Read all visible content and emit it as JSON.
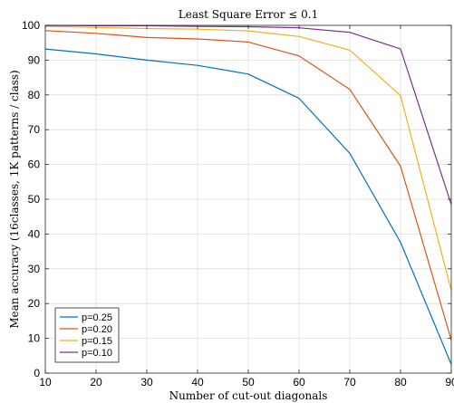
{
  "chart_data": {
    "type": "line",
    "title": "Least Square Error ≤ 0.1",
    "xlabel": "Number of cut-out diagonals",
    "ylabel": "Mean accuracy (16classes, 1K patterns / class)",
    "x": [
      10,
      20,
      30,
      40,
      50,
      60,
      70,
      80,
      90
    ],
    "xlim": [
      10,
      90
    ],
    "ylim": [
      0,
      100
    ],
    "xticks": [
      10,
      20,
      30,
      40,
      50,
      60,
      70,
      80,
      90
    ],
    "yticks": [
      0,
      10,
      20,
      30,
      40,
      50,
      60,
      70,
      80,
      90,
      100
    ],
    "grid": true,
    "legend_position": "bottom-left",
    "series": [
      {
        "name": "p=0.25",
        "color": "#0072BD",
        "values": [
          93.2,
          91.8,
          90.0,
          88.5,
          86.0,
          79.0,
          63.2,
          37.6,
          2.5
        ]
      },
      {
        "name": "p=0.20",
        "color": "#D95319",
        "values": [
          98.5,
          97.7,
          96.5,
          96.1,
          95.2,
          91.2,
          81.6,
          59.5,
          9.5
        ]
      },
      {
        "name": "p=0.15",
        "color": "#EDB120",
        "values": [
          99.7,
          99.4,
          99.1,
          98.9,
          98.4,
          96.8,
          92.9,
          79.8,
          23.8
        ]
      },
      {
        "name": "p=0.10",
        "color": "#7E2F8E",
        "values": [
          100.0,
          99.9,
          99.9,
          99.7,
          99.6,
          99.3,
          98.0,
          93.2,
          48.5
        ]
      }
    ]
  }
}
